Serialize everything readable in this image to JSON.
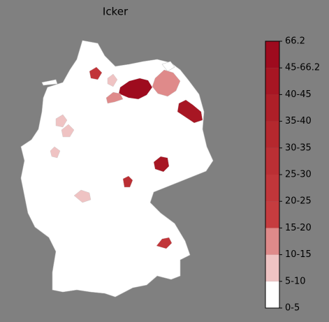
{
  "title": "Icker",
  "legend": {
    "labels": [
      "0-5",
      "5-10",
      "10-15",
      "15-20",
      "20-25",
      "25-30",
      "30-35",
      "35-40",
      "40-45",
      "45-66.2",
      "66.2"
    ],
    "colors": [
      "#ffffff",
      "#efc3c3",
      "#df8a8a",
      "#c63c3f",
      "#c1363a",
      "#bb2f34",
      "#b5282e",
      "#ae1f28",
      "#a71623",
      "#9e0b1e"
    ]
  }
}
